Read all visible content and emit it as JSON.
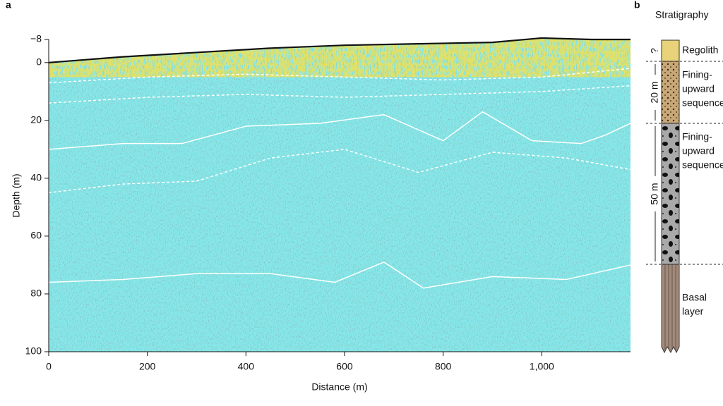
{
  "panel_a": {
    "label": "a",
    "x_label": "Distance (m)",
    "y_label": "Depth (m)",
    "xlim": [
      0,
      1180
    ],
    "ylim": [
      -8,
      100
    ],
    "xticks": [
      0,
      200,
      400,
      600,
      800,
      {
        "value": 1000,
        "label": "1,000"
      }
    ],
    "yticks": [
      {
        "value": -8,
        "label": "−8"
      },
      0,
      20,
      40,
      60,
      80,
      100
    ],
    "surface": {
      "color": "#111111",
      "x": [
        0,
        150,
        300,
        450,
        600,
        750,
        900,
        1000,
        1100,
        1180
      ],
      "depth": [
        0,
        -2,
        -3.5,
        -5,
        -6,
        -6.5,
        -7,
        -8.5,
        -8,
        -8
      ]
    },
    "interfaces": [
      {
        "style": "dashed",
        "x": [
          0,
          200,
          400,
          600,
          800,
          1000,
          1180
        ],
        "depth": [
          7,
          5,
          4,
          5,
          6,
          5,
          2
        ]
      },
      {
        "style": "dashed",
        "x": [
          0,
          200,
          400,
          600,
          800,
          1000,
          1180
        ],
        "depth": [
          14,
          12,
          11,
          12,
          11,
          10,
          8
        ]
      },
      {
        "style": "solid",
        "x": [
          0,
          150,
          270,
          400,
          550,
          680,
          800,
          880,
          980,
          1080,
          1130,
          1180
        ],
        "depth": [
          30,
          28,
          28,
          22,
          21,
          18,
          27,
          17,
          27,
          28,
          25,
          21
        ]
      },
      {
        "style": "dashed",
        "x": [
          0,
          150,
          300,
          450,
          600,
          750,
          900,
          1050,
          1180
        ],
        "depth": [
          45,
          42,
          41,
          33,
          30,
          38,
          31,
          33,
          37
        ]
      },
      {
        "style": "solid",
        "x": [
          0,
          150,
          300,
          450,
          580,
          680,
          760,
          900,
          1050,
          1180
        ],
        "depth": [
          76,
          75,
          73,
          73,
          76,
          69,
          78,
          74,
          75,
          70
        ]
      }
    ],
    "interface_color": "#ffffff"
  },
  "panel_b": {
    "label": "b",
    "title": "Stratigraphy",
    "units": [
      {
        "lines": [
          "Regolith"
        ],
        "thickness_label": "?",
        "color": "#e8d37a"
      },
      {
        "lines": [
          "Fining-",
          "upward",
          "sequence"
        ],
        "thickness_label": "20 m",
        "color": "#c9a877"
      },
      {
        "lines": [
          "Fining-",
          "upward",
          "sequence"
        ],
        "thickness_label": "50 m",
        "color": "#a9a9a9"
      },
      {
        "lines": [
          "Basal",
          "layer"
        ],
        "color": "#a08a7c"
      }
    ]
  }
}
